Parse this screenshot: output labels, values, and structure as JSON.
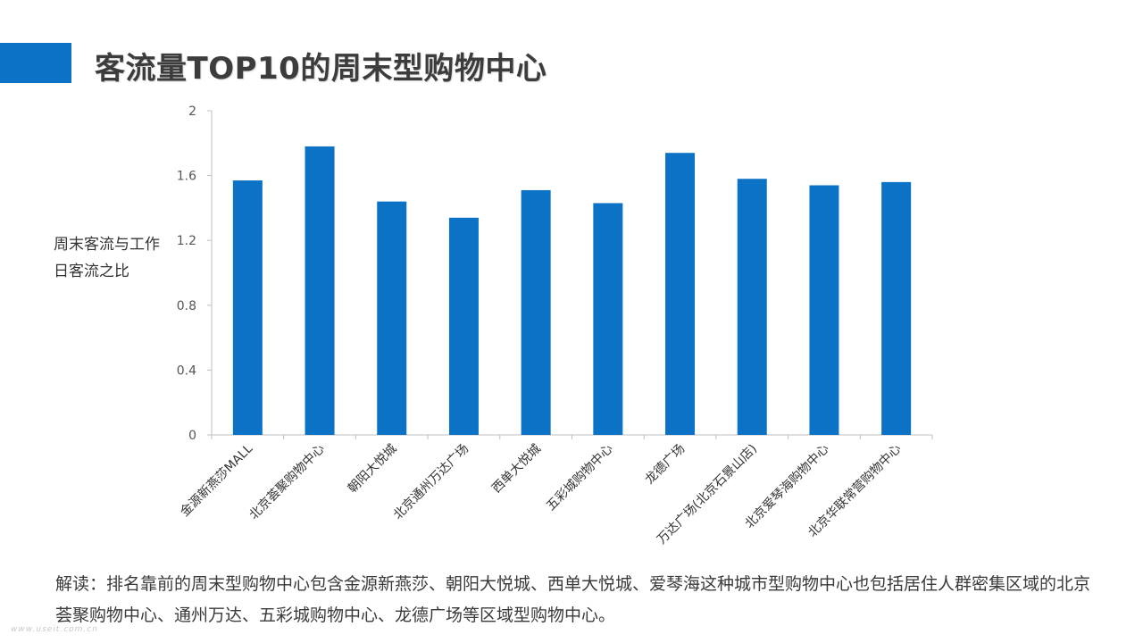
{
  "title": "客流量TOP10的周末型购物中心",
  "colors": {
    "accent": "#0b72c6",
    "bar": "#0b72c6",
    "axis": "#bfbfbf"
  },
  "chart_data": {
    "type": "bar",
    "title": "",
    "xlabel": "",
    "ylabel": "周末客流与工作日客流之比",
    "ylim": [
      0,
      2
    ],
    "yticks": [
      0,
      0.4,
      0.8,
      1.2,
      1.6,
      2
    ],
    "grid": false,
    "legend": "none",
    "categories": [
      "金源新燕莎MALL",
      "北京荟聚购物中心",
      "朝阳大悦城",
      "北京通州万达广场",
      "西单大悦城",
      "五彩城购物中心",
      "龙德广场",
      "万达广场(北京石景山店)",
      "北京爱琴海购物中心",
      "北京华联常营购物中心"
    ],
    "values": [
      1.57,
      1.78,
      1.44,
      1.34,
      1.51,
      1.43,
      1.74,
      1.58,
      1.54,
      1.56
    ]
  },
  "description": "解读：排名靠前的周末型购物中心包含金源新燕莎、朝阳大悦城、西单大悦城、爱琴海这种城市型购物中心也包括居住人群密集区域的北京荟聚购物中心、通州万达、五彩城购物中心、龙德广场等区域型购物中心。",
  "watermark": "www.useit.com.cn"
}
